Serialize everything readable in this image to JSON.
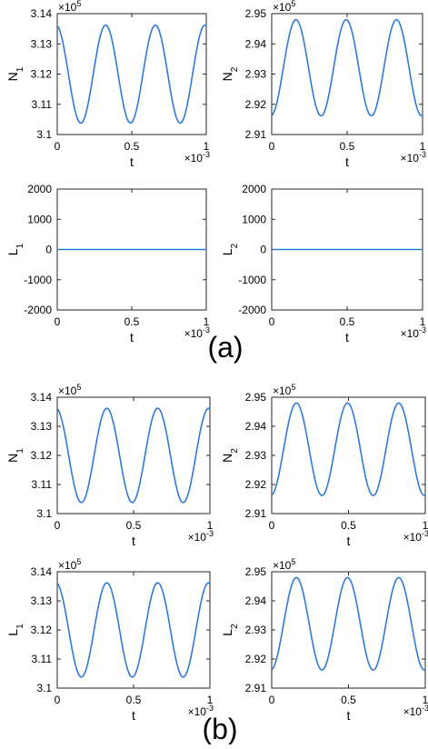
{
  "figure": {
    "panel_labels": [
      "(a)",
      "(b)"
    ]
  },
  "style": {
    "line_color": "#2f7bd6",
    "axis_color": "#262626"
  },
  "chart_data": [
    {
      "id": "a1",
      "type": "line",
      "xlabel": "t",
      "ylabel": "N",
      "ylabel_sub": "1",
      "xlim": [
        0,
        1
      ],
      "ylim": [
        3.1,
        3.14
      ],
      "xticks": [
        "0",
        "0.5",
        "1"
      ],
      "yticks": [
        "3.1",
        "3.11",
        "3.12",
        "3.13",
        "3.14"
      ],
      "x_exponent": "-3",
      "y_exponent": "5",
      "grid": false,
      "series": [
        {
          "curve": {
            "kind": "cosine",
            "start_value": 3.136,
            "mean": 3.12,
            "amplitude": 0.0162,
            "period": 0.3333
          }
        }
      ]
    },
    {
      "id": "a2",
      "type": "line",
      "xlabel": "t",
      "ylabel": "N",
      "ylabel_sub": "2",
      "xlim": [
        0,
        1
      ],
      "ylim": [
        2.91,
        2.95
      ],
      "xticks": [
        "0",
        "0.5",
        "1"
      ],
      "yticks": [
        "2.91",
        "2.92",
        "2.93",
        "2.94",
        "2.95"
      ],
      "x_exponent": "-3",
      "y_exponent": "5",
      "grid": false,
      "series": [
        {
          "curve": {
            "kind": "cosine",
            "start_value": 2.9163,
            "mean": 2.9321,
            "amplitude": -0.0159,
            "period": 0.3333
          }
        }
      ]
    },
    {
      "id": "a3",
      "type": "line",
      "xlabel": "t",
      "ylabel": "L",
      "ylabel_sub": "1",
      "xlim": [
        0,
        1
      ],
      "ylim": [
        -2000,
        2000
      ],
      "xticks": [
        "0",
        "0.5",
        "1"
      ],
      "yticks": [
        "-2000",
        "-1000",
        "0",
        "1000",
        "2000"
      ],
      "x_exponent": "-3",
      "y_exponent": "",
      "grid": false,
      "series": [
        {
          "curve": {
            "kind": "constant",
            "value": 0
          }
        }
      ]
    },
    {
      "id": "a4",
      "type": "line",
      "xlabel": "t",
      "ylabel": "L",
      "ylabel_sub": "2",
      "xlim": [
        0,
        1
      ],
      "ylim": [
        -2000,
        2000
      ],
      "xticks": [
        "0",
        "0.5",
        "1"
      ],
      "yticks": [
        "-2000",
        "-1000",
        "0",
        "1000",
        "2000"
      ],
      "x_exponent": "-3",
      "y_exponent": "",
      "grid": false,
      "series": [
        {
          "curve": {
            "kind": "constant",
            "value": 0
          }
        }
      ]
    },
    {
      "id": "b1",
      "type": "line",
      "xlabel": "t",
      "ylabel": "N",
      "ylabel_sub": "1",
      "xlim": [
        0,
        1
      ],
      "ylim": [
        3.1,
        3.14
      ],
      "xticks": [
        "0",
        "0.5",
        "1"
      ],
      "yticks": [
        "3.1",
        "3.11",
        "3.12",
        "3.13",
        "3.14"
      ],
      "x_exponent": "-3",
      "y_exponent": "5",
      "grid": false,
      "series": [
        {
          "curve": {
            "kind": "cosine",
            "start_value": 3.136,
            "mean": 3.12,
            "amplitude": 0.0162,
            "period": 0.3333
          }
        }
      ]
    },
    {
      "id": "b2",
      "type": "line",
      "xlabel": "t",
      "ylabel": "N",
      "ylabel_sub": "2",
      "xlim": [
        0,
        1
      ],
      "ylim": [
        2.91,
        2.95
      ],
      "xticks": [
        "0",
        "0.5",
        "1"
      ],
      "yticks": [
        "2.91",
        "2.92",
        "2.93",
        "2.94",
        "2.95"
      ],
      "x_exponent": "-3",
      "y_exponent": "5",
      "grid": false,
      "series": [
        {
          "curve": {
            "kind": "cosine",
            "start_value": 2.9163,
            "mean": 2.9321,
            "amplitude": -0.0159,
            "period": 0.3333
          }
        }
      ]
    },
    {
      "id": "b3",
      "type": "line",
      "xlabel": "t",
      "ylabel": "L",
      "ylabel_sub": "1",
      "xlim": [
        0,
        1
      ],
      "ylim": [
        3.1,
        3.14
      ],
      "xticks": [
        "0",
        "0.5",
        "1"
      ],
      "yticks": [
        "3.1",
        "3.11",
        "3.12",
        "3.13",
        "3.14"
      ],
      "x_exponent": "-3",
      "y_exponent": "5",
      "grid": false,
      "series": [
        {
          "curve": {
            "kind": "cosine",
            "start_value": 3.136,
            "mean": 3.12,
            "amplitude": 0.0162,
            "period": 0.3333
          }
        }
      ]
    },
    {
      "id": "b4",
      "type": "line",
      "xlabel": "t",
      "ylabel": "L",
      "ylabel_sub": "2",
      "xlim": [
        0,
        1
      ],
      "ylim": [
        2.91,
        2.95
      ],
      "xticks": [
        "0",
        "0.5",
        "1"
      ],
      "yticks": [
        "2.91",
        "2.92",
        "2.93",
        "2.94",
        "2.95"
      ],
      "x_exponent": "-3",
      "y_exponent": "5",
      "grid": false,
      "series": [
        {
          "curve": {
            "kind": "cosine",
            "start_value": 2.9163,
            "mean": 2.9321,
            "amplitude": -0.0159,
            "period": 0.3333
          }
        }
      ]
    }
  ]
}
